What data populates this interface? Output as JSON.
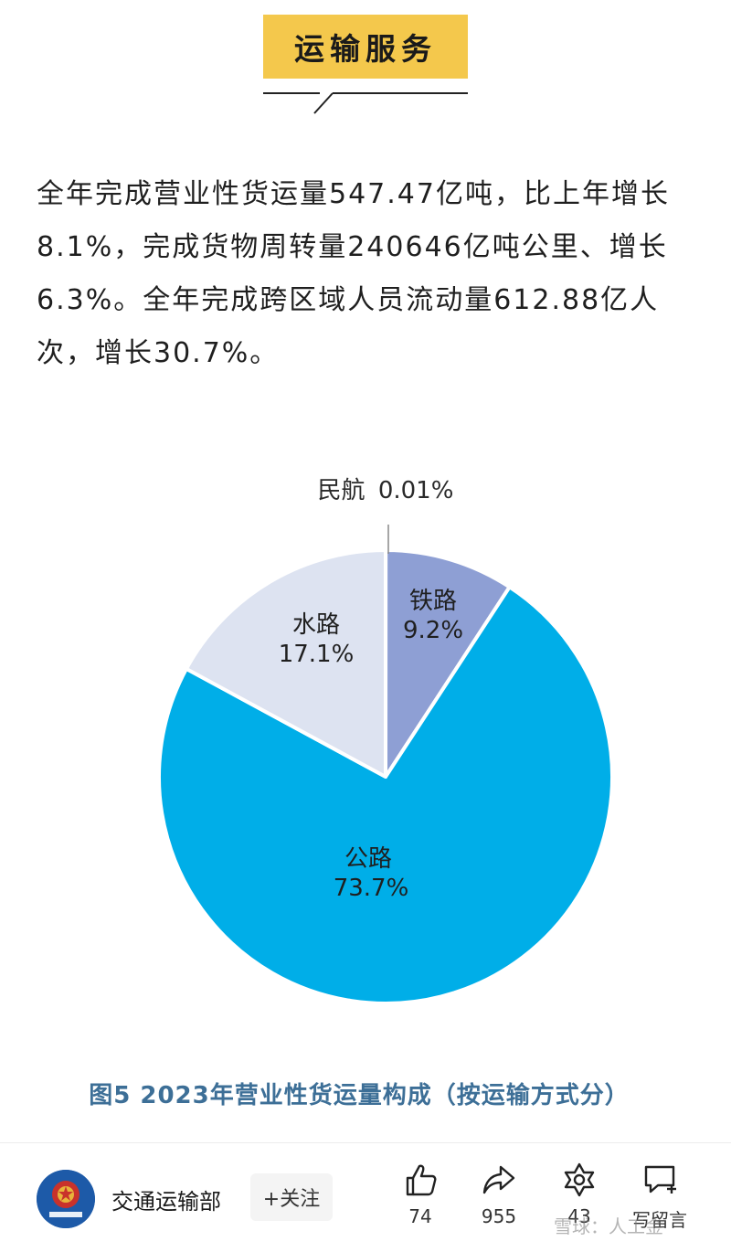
{
  "section": {
    "title": "运输服务"
  },
  "article": {
    "paragraph": "全年完成营业性货运量547.47亿吨，比上年增长8.1%，完成货物周转量240646亿吨公里、增长6.3%。全年完成跨区域人员流动量612.88亿人次，增长30.7%。"
  },
  "chart_data": {
    "type": "pie",
    "title": "",
    "caption": "图5  2023年营业性货运量构成（按运输方式分）",
    "slices": [
      {
        "name": "民航",
        "value": 0.01,
        "label": "0.01%",
        "color": "#9aa7d6"
      },
      {
        "name": "铁路",
        "value": 9.2,
        "label": "9.2%",
        "color": "#8e9fd4"
      },
      {
        "name": "公路",
        "value": 73.7,
        "label": "73.7%",
        "color": "#00aee8"
      },
      {
        "name": "水路",
        "value": 17.1,
        "label": "17.1%",
        "color": "#dde3f1"
      }
    ]
  },
  "bottom_bar": {
    "account_name": "交通运输部",
    "follow_label": "+关注",
    "like_count": "74",
    "share_count": "955",
    "collect_count": "43",
    "comment_label": "写留言",
    "watermark": "雪球：人工金"
  },
  "colors": {
    "banner": "#f4c84c",
    "caption": "#3d6f97",
    "accent": "#00aee8"
  }
}
